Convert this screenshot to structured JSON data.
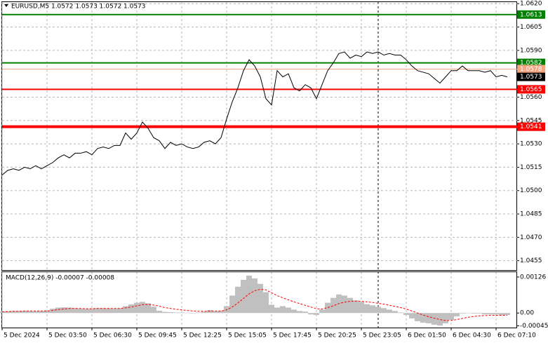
{
  "chart_data": [
    {
      "type": "line",
      "title": "EURUSD,M5  1.0572 1.0573 1.0572 1.0573",
      "color": "#000000",
      "values": [
        1.051,
        1.0513,
        1.0514,
        1.0513,
        1.0515,
        1.0514,
        1.0516,
        1.0514,
        1.0516,
        1.0518,
        1.0521,
        1.0523,
        1.0521,
        1.0524,
        1.0524,
        1.0525,
        1.0523,
        1.0527,
        1.0528,
        1.0527,
        1.0529,
        1.0529,
        1.0537,
        1.0533,
        1.0537,
        1.0544,
        1.054,
        1.0534,
        1.0532,
        1.0527,
        1.0531,
        1.0529,
        1.053,
        1.0528,
        1.0527,
        1.0528,
        1.0531,
        1.0532,
        1.053,
        1.0534,
        1.0546,
        1.0557,
        1.0566,
        1.0577,
        1.0584,
        1.058,
        1.0573,
        1.0559,
        1.0555,
        1.0577,
        1.0573,
        1.0575,
        1.0566,
        1.0564,
        1.0568,
        1.0566,
        1.0559,
        1.0568,
        1.0577,
        1.0582,
        1.0588,
        1.0589,
        1.0585,
        1.0587,
        1.0586,
        1.0589,
        1.0588,
        1.0589,
        1.0587,
        1.0588,
        1.0587,
        1.0587,
        1.0584,
        1.058,
        1.0577,
        1.0576,
        1.0575,
        1.0572,
        1.0569,
        1.0573,
        1.0577,
        1.0577,
        1.058,
        1.0577,
        1.0577,
        1.0577,
        1.0576,
        1.0577,
        1.0573,
        1.0574,
        1.0573
      ],
      "ylim": [
        1.0449,
        1.0621
      ],
      "yticks": [
        {
          "value": 1.062,
          "label": "1.0620"
        },
        1.0605,
        {
          "value": 1.059,
          "label": "1.0590"
        },
        {
          "value": 1.056,
          "label": "1.0560"
        },
        1.0545,
        {
          "value": 1.053,
          "label": "1.0530"
        },
        1.0515,
        {
          "value": 1.05,
          "label": "1.0500"
        },
        1.0485,
        {
          "value": 1.047,
          "label": "1.0470"
        },
        1.0455
      ],
      "xticks": [
        {
          "value": 0,
          "label": "5 Dec 2024"
        },
        {
          "value": 8,
          "label": "5 Dec 03:50"
        },
        {
          "value": 16,
          "label": "5 Dec 06:30"
        },
        {
          "value": 24,
          "label": "5 Dec 09:45"
        },
        {
          "value": 32,
          "label": "5 Dec 12:25"
        },
        {
          "value": 40,
          "label": "5 Dec 15:05"
        },
        {
          "value": 48,
          "label": "5 Dec 17:45"
        },
        {
          "value": 56,
          "label": "5 Dec 20:25"
        },
        {
          "value": 64,
          "label": "5 Dec 23:05"
        },
        {
          "value": 72,
          "label": "6 Dec 01:50"
        },
        {
          "value": 80,
          "label": "6 Dec 04:30"
        },
        {
          "value": 88,
          "label": "6 Dec 07:10"
        }
      ],
      "grid": true,
      "levels": [
        {
          "value": 1.0613,
          "color": "#008000"
        },
        {
          "value": 1.0582,
          "color": "#008000"
        },
        {
          "value": 1.0578,
          "color": "#f4a582"
        },
        {
          "value": 1.0573,
          "color": "#000000"
        },
        {
          "value": 1.0565,
          "color": "#ff0000"
        },
        {
          "value": 1.0541,
          "color": "#ff0000"
        }
      ]
    },
    {
      "type": "macd",
      "title": "MACD(12,26,9) -0.00007 -0.00008",
      "series": [
        {
          "type": "bar",
          "color": "#c0c0c0",
          "values": [
            5e-05,
            6e-05,
            7e-05,
            7e-05,
            8e-05,
            7e-05,
            6e-05,
            7e-05,
            9e-05,
            0.00015,
            0.00019,
            0.0002,
            0.00019,
            0.00017,
            0.00015,
            0.00014,
            0.00015,
            0.00017,
            0.00017,
            0.00016,
            0.00015,
            0.00016,
            0.00024,
            0.0003,
            0.00036,
            0.00039,
            0.00034,
            0.00022,
            8e-05,
            4e-05,
            3e-05,
            2e-05,
            2e-05,
            1e-05,
            -1e-05,
            2e-05,
            5e-05,
            0.0001,
            6e-05,
            8e-05,
            0.00024,
            0.00061,
            0.00092,
            0.00116,
            0.00131,
            0.00121,
            0.00102,
            0.00073,
            0.00029,
            0.00019,
            0.00024,
            0.00019,
            0.00012,
            7e-05,
            5e-05,
            -5e-05,
            -7e-05,
            0.00012,
            0.00036,
            0.00053,
            0.00065,
            0.00061,
            0.00053,
            0.00044,
            0.00039,
            0.00031,
            0.00027,
            0.00022,
            0.00017,
            0.00012,
            7e-05,
            2e-05,
            -7e-05,
            -0.00019,
            -0.00029,
            -0.00034,
            -0.00036,
            -0.00041,
            -0.00044,
            -0.00036,
            -0.00024,
            -0.00012,
            -2e-05,
            0,
            -2e-05,
            -2e-05,
            -5e-05,
            -5e-05,
            -5e-05,
            -7e-05,
            -7e-05
          ]
        },
        {
          "type": "line",
          "color": "#ff0000",
          "values": [
            4e-05,
            5e-05,
            6e-05,
            6e-05,
            7e-05,
            7e-05,
            7e-05,
            7e-05,
            7e-05,
            9e-05,
            0.00012,
            0.00014,
            0.00016,
            0.00016,
            0.00016,
            0.00015,
            0.00015,
            0.00016,
            0.00016,
            0.00016,
            0.00016,
            0.00016,
            0.00018,
            0.00021,
            0.00025,
            0.00029,
            0.0003,
            0.00028,
            0.00024,
            0.00019,
            0.00016,
            0.00013,
            0.00011,
            9e-05,
            7e-05,
            6e-05,
            6e-05,
            7e-05,
            7e-05,
            7e-05,
            0.00011,
            0.00021,
            0.00035,
            0.00051,
            0.00067,
            0.00078,
            0.00083,
            0.00081,
            0.00071,
            0.00061,
            0.00053,
            0.00046,
            0.00039,
            0.00033,
            0.00027,
            0.00021,
            0.00015,
            0.00014,
            0.00019,
            0.00025,
            0.00033,
            0.00038,
            0.00041,
            0.00042,
            0.00041,
            0.00039,
            0.00037,
            0.00034,
            0.00031,
            0.00027,
            0.00023,
            0.00019,
            0.00014,
            7e-05,
            0,
            -7e-05,
            -0.00013,
            -0.00018,
            -0.00023,
            -0.00026,
            -0.00026,
            -0.00023,
            -0.00019,
            -0.00015,
            -0.00012,
            -0.0001,
            -9e-05,
            -8e-05,
            -8e-05,
            -8e-05,
            -8e-05
          ]
        }
      ],
      "ylim": [
        -0.00051,
        0.00143
      ],
      "yticks": [
        0.00126,
        {
          "value": 0,
          "label": "0.00"
        },
        -0.00045
      ]
    }
  ]
}
